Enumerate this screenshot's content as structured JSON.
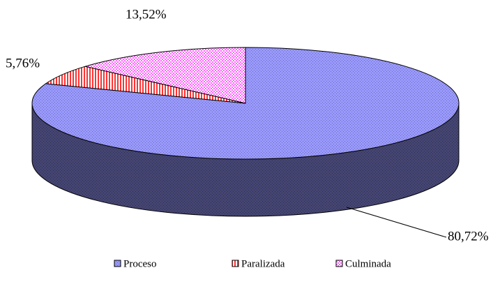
{
  "chart_data": {
    "type": "pie3d",
    "categories": [
      "Proceso",
      "Paralizada",
      "Culminada"
    ],
    "values": [
      80.72,
      5.76,
      13.52
    ],
    "value_labels": [
      "80,72%",
      "5,76%",
      "13,52%"
    ],
    "colors": [
      "#9999ff",
      "#ff3333",
      "#ff66ff"
    ],
    "legend": "bottom"
  }
}
